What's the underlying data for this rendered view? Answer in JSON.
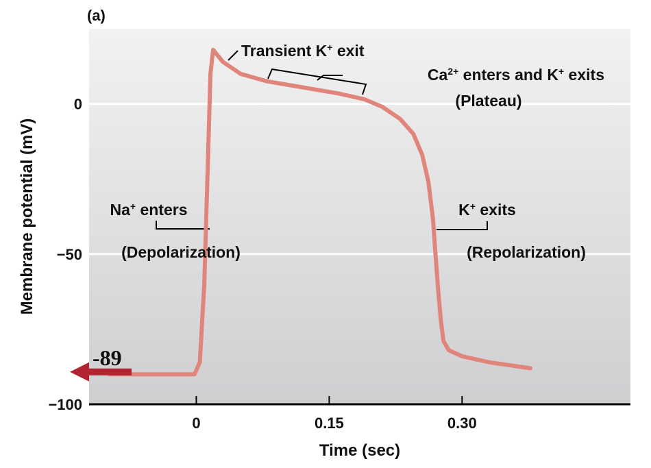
{
  "chart_data": {
    "type": "line",
    "panel_label": "(a)",
    "xlabel": "Time (sec)",
    "ylabel": "Membrane potential (mV)",
    "xlim": [
      -0.121,
      0.49
    ],
    "ylim": [
      -100,
      25
    ],
    "xticks": [
      {
        "value": 0,
        "label": "0"
      },
      {
        "value": 0.15,
        "label": "0.15"
      },
      {
        "value": 0.3,
        "label": "0.30"
      }
    ],
    "yticks": [
      {
        "value": 0,
        "label": "0"
      },
      {
        "value": -50,
        "label": "−50"
      },
      {
        "value": -100,
        "label": "−100"
      }
    ],
    "gridlines_y": [
      0,
      -50
    ],
    "line_color": "#e0857c",
    "arrow_color": "#b22430",
    "background_top": "#f2f2f2",
    "background_bottom": "#cfcfd2",
    "series": [
      {
        "x": [
          -0.098,
          -0.002,
          0.004,
          0.009,
          0.013,
          0.016,
          0.019,
          0.03,
          0.05,
          0.08,
          0.12,
          0.16,
          0.19,
          0.21,
          0.23,
          0.245,
          0.255,
          0.262,
          0.267,
          0.27,
          0.273,
          0.276,
          0.279,
          0.285,
          0.3,
          0.33,
          0.377
        ],
        "y": [
          -90,
          -90,
          -86,
          -60,
          -20,
          10,
          18,
          14,
          10,
          7.5,
          5.5,
          3.5,
          1.5,
          -1,
          -5,
          -10,
          -17,
          -26,
          -38,
          -50,
          -62,
          -72,
          -79,
          -82,
          -84,
          -86,
          -88
        ]
      }
    ],
    "marker": {
      "value_label": "-89",
      "y": -89
    },
    "annotations": [
      {
        "name": "transient-k-exit",
        "lines": [
          [
            {
              "t": "Transient K"
            },
            {
              "t": "+",
              "sup": true
            },
            {
              "t": " exit"
            }
          ]
        ]
      },
      {
        "name": "plateau",
        "lines": [
          [
            {
              "t": "Ca"
            },
            {
              "t": "2+",
              "sup": true
            },
            {
              "t": " enters and K"
            },
            {
              "t": "+",
              "sup": true
            },
            {
              "t": " exits"
            }
          ],
          [
            {
              "t": "(Plateau)"
            }
          ]
        ]
      },
      {
        "name": "depolarization",
        "lines": [
          [
            {
              "t": "Na"
            },
            {
              "t": "+",
              "sup": true
            },
            {
              "t": " enters"
            }
          ],
          [
            {
              "t": "(Depolarization)"
            }
          ]
        ]
      },
      {
        "name": "repolarization",
        "lines": [
          [
            {
              "t": "K"
            },
            {
              "t": "+",
              "sup": true
            },
            {
              "t": " exits"
            }
          ],
          [
            {
              "t": "(Repolarization)"
            }
          ]
        ]
      }
    ]
  }
}
